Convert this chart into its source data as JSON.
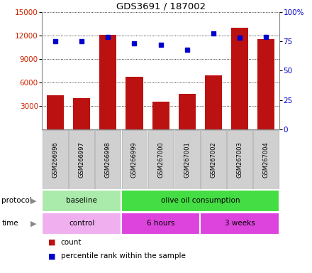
{
  "title": "GDS3691 / 187002",
  "samples": [
    "GSM266996",
    "GSM266997",
    "GSM266998",
    "GSM266999",
    "GSM267000",
    "GSM267001",
    "GSM267002",
    "GSM267003",
    "GSM267004"
  ],
  "counts": [
    4400,
    4000,
    12100,
    6700,
    3500,
    4500,
    6900,
    13000,
    11500
  ],
  "percentiles": [
    75,
    75,
    79,
    73,
    72,
    68,
    82,
    78,
    79
  ],
  "ylim_left": [
    0,
    15000
  ],
  "ylim_right": [
    0,
    100
  ],
  "yticks_left": [
    3000,
    6000,
    9000,
    12000,
    15000
  ],
  "yticks_right": [
    0,
    25,
    50,
    75,
    100
  ],
  "bar_color": "#bb1111",
  "dot_color": "#0000cc",
  "protocol_groups": [
    {
      "label": "baseline",
      "start": 0,
      "end": 3,
      "color": "#aaeaaa"
    },
    {
      "label": "olive oil consumption",
      "start": 3,
      "end": 9,
      "color": "#44dd44"
    }
  ],
  "time_groups": [
    {
      "label": "control",
      "start": 0,
      "end": 3,
      "color": "#f0b0f0"
    },
    {
      "label": "6 hours",
      "start": 3,
      "end": 6,
      "color": "#dd44dd"
    },
    {
      "label": "3 weeks",
      "start": 6,
      "end": 9,
      "color": "#dd44dd"
    }
  ],
  "legend_count_label": "count",
  "legend_pct_label": "percentile rank within the sample",
  "tick_label_color_left": "#cc2200",
  "tick_label_color_right": "#0000cc",
  "sample_box_color": "#d0d0d0",
  "sample_box_edge": "#aaaaaa"
}
